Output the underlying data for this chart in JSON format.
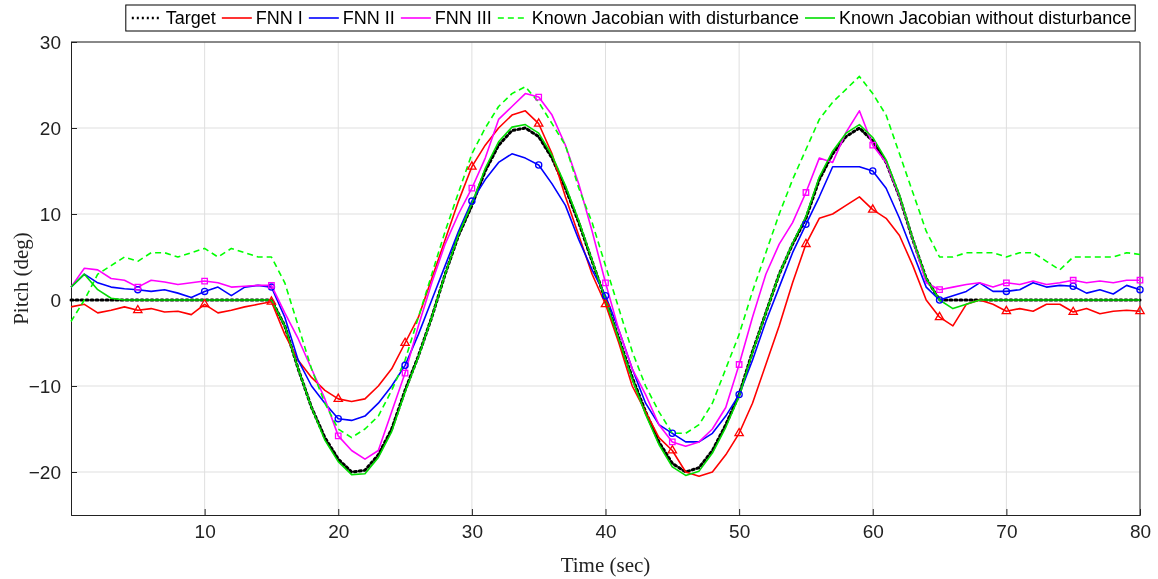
{
  "chart_data": {
    "type": "line",
    "xlabel": "Time (sec)",
    "ylabel": "Pitch (deg)",
    "xlim": [
      0,
      80
    ],
    "ylim": [
      -25,
      30
    ],
    "xticks": [
      10,
      20,
      30,
      40,
      50,
      60,
      70,
      80
    ],
    "yticks": [
      -20,
      -10,
      0,
      10,
      20,
      30
    ],
    "grid": true,
    "legend": "top",
    "x": [
      0,
      1,
      2,
      3,
      4,
      5,
      6,
      7,
      8,
      9,
      10,
      11,
      12,
      13,
      14,
      15,
      16,
      17,
      18,
      19,
      20,
      21,
      22,
      23,
      24,
      25,
      26,
      27,
      28,
      29,
      30,
      31,
      32,
      33,
      34,
      35,
      36,
      37,
      38,
      39,
      40,
      41,
      42,
      43,
      44,
      45,
      46,
      47,
      48,
      49,
      50,
      51,
      52,
      53,
      54,
      55,
      56,
      57,
      58,
      59,
      60,
      61,
      62,
      63,
      64,
      65,
      66,
      67,
      68,
      69,
      70,
      71,
      72,
      73,
      74,
      75,
      76,
      77,
      78,
      79,
      80
    ],
    "series": [
      {
        "name": "Target",
        "color": "#000000",
        "line_style": "dotted",
        "values": [
          0,
          0,
          0,
          0,
          0,
          0,
          0,
          0,
          0,
          0,
          0,
          0,
          0,
          0,
          0,
          0,
          -3,
          -8,
          -12.5,
          -16,
          -18.5,
          -20,
          -19.8,
          -18,
          -15,
          -10.5,
          -6.5,
          -2,
          3,
          7.5,
          11,
          15,
          18,
          19.7,
          20,
          19,
          16.5,
          13,
          9,
          4.5,
          0,
          -4.5,
          -9,
          -13,
          -16.5,
          -19,
          -20,
          -19.5,
          -17.5,
          -14.5,
          -11,
          -6,
          -1.5,
          3,
          6.5,
          9.5,
          14,
          17,
          19,
          20,
          18.5,
          16,
          12,
          7,
          2.5,
          0,
          0,
          0,
          0,
          0,
          0,
          0,
          0,
          0,
          0,
          0,
          0,
          0,
          0,
          0,
          0
        ]
      },
      {
        "name": "FNN I",
        "color": "#ff0000",
        "line_style": "solid",
        "values": [
          -0.8,
          -0.5,
          -1.5,
          -1.2,
          -0.8,
          -1.2,
          -1,
          -1.4,
          -1.3,
          -1.7,
          -0.5,
          -1.5,
          -1.2,
          -0.8,
          -0.5,
          -0.2,
          -4,
          -7,
          -9,
          -10.5,
          -11.5,
          -11.8,
          -11.5,
          -10,
          -8,
          -5,
          -2,
          2.5,
          7,
          11.5,
          15.5,
          18,
          20,
          21.5,
          22,
          20.5,
          17,
          12,
          7.5,
          3,
          -0.5,
          -5,
          -10,
          -13,
          -16,
          -17.5,
          -20,
          -20.5,
          -20,
          -18,
          -15.5,
          -12,
          -7.5,
          -3,
          2,
          6.5,
          9.5,
          10,
          11,
          12,
          10.5,
          9.5,
          7.5,
          4,
          0,
          -2,
          -3,
          -0.5,
          0,
          -0.5,
          -1.3,
          -1,
          -1.3,
          -0.5,
          -0.5,
          -1.4,
          -1,
          -1.6,
          -1.3,
          -1.2,
          -1.3
        ]
      },
      {
        "name": "FNN II",
        "color": "#0000ff",
        "line_style": "solid",
        "values": [
          1.5,
          3,
          2,
          1.5,
          1.3,
          1.2,
          1,
          1.2,
          0.8,
          0.3,
          1,
          1.5,
          0.5,
          1.5,
          1.7,
          1.5,
          -2,
          -7,
          -10,
          -12,
          -13.8,
          -14,
          -13.5,
          -12,
          -10,
          -7.6,
          -4,
          0,
          4,
          8,
          11.5,
          14,
          16,
          17,
          16.5,
          15.7,
          13.5,
          11,
          7,
          3.5,
          0.5,
          -3.5,
          -8,
          -12,
          -14.5,
          -15.5,
          -16.5,
          -16.5,
          -15.5,
          -13.5,
          -11,
          -7,
          -2.5,
          1.5,
          5.5,
          8.8,
          12,
          15.5,
          15.5,
          15.5,
          15,
          13,
          9.5,
          5.5,
          1.5,
          0,
          0.5,
          1,
          2,
          1,
          1,
          1.2,
          2,
          1.5,
          1.7,
          1.6,
          0.8,
          1.2,
          0.7,
          1.7,
          1.2
        ]
      },
      {
        "name": "FNN III",
        "color": "#ff00ff",
        "line_style": "solid",
        "values": [
          1.5,
          3.7,
          3.5,
          2.5,
          2.3,
          1.5,
          2.3,
          2.1,
          1.8,
          2,
          2.2,
          2,
          1.5,
          1.6,
          1.7,
          1.7,
          -1.5,
          -4.5,
          -8,
          -11.5,
          -15.8,
          -17.5,
          -18.5,
          -17.5,
          -13,
          -8.5,
          -3,
          2,
          6.5,
          10,
          13,
          16.5,
          21,
          22.5,
          24,
          23.6,
          21.5,
          18,
          13.5,
          8,
          2,
          -3.5,
          -8,
          -11,
          -14.5,
          -16.5,
          -17,
          -16.5,
          -15,
          -12.5,
          -7.5,
          -2,
          3,
          6.5,
          9,
          12.5,
          16.5,
          16,
          19.5,
          22,
          18,
          16,
          12,
          7,
          2,
          1.2,
          1.5,
          1.8,
          2,
          1.5,
          2,
          1.8,
          2.2,
          1.8,
          2,
          2.3,
          2,
          2.2,
          2,
          2.3,
          2.3
        ]
      },
      {
        "name": "Known Jacobian with disturbance",
        "color": "#00ff00",
        "line_style": "dashed",
        "values": [
          -2.5,
          0,
          3,
          4,
          5,
          4.5,
          5.5,
          5.5,
          5,
          5.5,
          6,
          5,
          6,
          5.5,
          5,
          5,
          2,
          -3,
          -8,
          -12,
          -15,
          -16,
          -15,
          -13.5,
          -10.5,
          -7,
          -2,
          3,
          8,
          12.5,
          17,
          20,
          22.5,
          24,
          24.8,
          23,
          20.5,
          18,
          13,
          9,
          4,
          -1,
          -6,
          -10,
          -13,
          -15.5,
          -15.5,
          -14.5,
          -12,
          -8,
          -4,
          1,
          5.5,
          10,
          14,
          17.5,
          21,
          23,
          24.5,
          26,
          24,
          21.5,
          17,
          12.5,
          8,
          5,
          5,
          5.5,
          5.5,
          5.5,
          5,
          5.5,
          5.5,
          4.5,
          3.5,
          5,
          5,
          5,
          5,
          5.5,
          5.3
        ]
      },
      {
        "name": "Known Jacobian without disturbance",
        "color": "#00dd00",
        "line_style": "solid",
        "values": [
          1.5,
          3,
          1.2,
          0.2,
          0,
          0,
          0,
          0,
          0,
          0,
          0,
          0,
          0,
          0,
          0,
          0,
          -3,
          -8,
          -12.5,
          -16.3,
          -18.8,
          -20.3,
          -20.2,
          -18.3,
          -15.3,
          -10.7,
          -6.6,
          -2,
          3,
          7.6,
          11.2,
          15.3,
          18.4,
          20.1,
          20.4,
          19.4,
          16.8,
          13.3,
          9.2,
          4.6,
          0,
          -4.6,
          -9.2,
          -13.3,
          -16.8,
          -19.4,
          -20.4,
          -19.9,
          -17.8,
          -14.8,
          -11.2,
          -6.1,
          -1.5,
          3,
          6.6,
          9.7,
          14.3,
          17.3,
          19.4,
          20.4,
          18.9,
          16.3,
          12.2,
          7.1,
          2.5,
          0,
          -1,
          -0.5,
          0,
          0,
          0,
          0,
          0,
          0,
          0,
          0,
          0,
          0,
          0,
          0,
          0
        ]
      },
      {
        "type": "scatter",
        "marker": "triangle",
        "color": "#ff0000",
        "x": [
          5,
          10,
          15,
          20,
          25,
          30,
          35,
          40,
          45,
          50,
          55,
          60,
          65,
          70,
          75,
          80
        ],
        "values": [
          -1.2,
          -0.5,
          -0.2,
          -11.5,
          -5,
          15.5,
          20.5,
          -0.5,
          -17.5,
          -15.5,
          6.5,
          10.5,
          -2,
          -1.3,
          -1.4,
          -1.3
        ]
      },
      {
        "type": "scatter",
        "marker": "circle",
        "color": "#0000ff",
        "x": [
          5,
          10,
          15,
          20,
          25,
          30,
          35,
          40,
          45,
          50,
          55,
          60,
          65,
          70,
          75,
          80
        ],
        "values": [
          1.2,
          1,
          1.5,
          -13.8,
          -7.6,
          11.5,
          15.7,
          0.5,
          -15.5,
          -11,
          8.8,
          15,
          0,
          1,
          1.6,
          1.2
        ]
      },
      {
        "type": "scatter",
        "marker": "square",
        "color": "#ff00ff",
        "x": [
          5,
          10,
          15,
          20,
          25,
          30,
          35,
          40,
          45,
          50,
          55,
          60,
          65,
          70,
          75,
          80
        ],
        "values": [
          1.5,
          2.2,
          1.7,
          -15.8,
          -8.5,
          13,
          23.6,
          2,
          -16.5,
          -7.5,
          12.5,
          18,
          1.2,
          2,
          2.3,
          2.3
        ]
      }
    ]
  }
}
